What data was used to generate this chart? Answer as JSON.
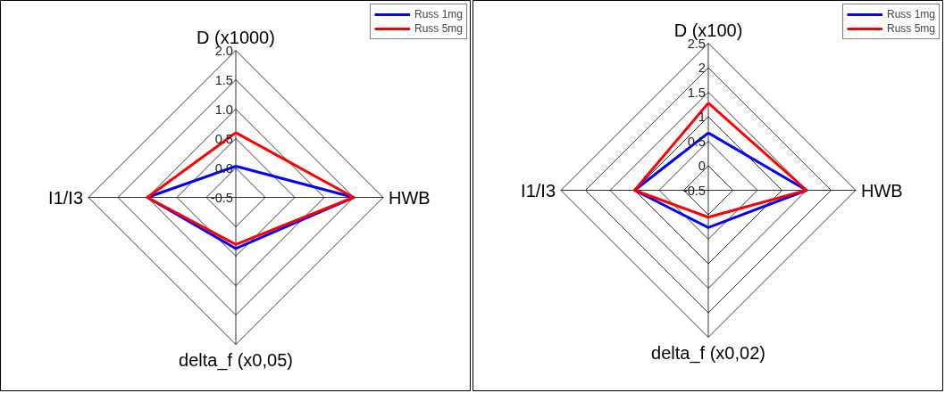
{
  "chart_data": [
    {
      "type": "radar",
      "categories": [
        "D (x1000)",
        "HWB",
        "delta_f (x0,05)",
        "I1/I3"
      ],
      "ylim": [
        -0.5,
        2.0
      ],
      "yticks": [
        -0.5,
        {
          "value": 0,
          "label": "0.0"
        },
        0.5,
        {
          "value": 1,
          "label": "1.0"
        },
        1.5,
        {
          "value": 2,
          "label": "2.0"
        }
      ],
      "grid": true,
      "legend": "top right",
      "marker": "none",
      "line_style": "solid",
      "series": [
        {
          "name": "Russ 1mg",
          "color": "#0000ff",
          "values": [
            0.03,
            1.5,
            0.37,
            1.0
          ]
        },
        {
          "name": "Russ 5mg",
          "color": "#ff0000",
          "values": [
            0.6,
            1.5,
            0.3,
            1.0
          ]
        }
      ]
    },
    {
      "type": "radar",
      "categories": [
        "D (x100)",
        "HWB",
        "delta_f (x0,02)",
        "I1/I3"
      ],
      "ylim": [
        -0.5,
        2.5
      ],
      "yticks": [
        -0.5,
        0,
        0.5,
        1,
        1.5,
        2,
        2.5
      ],
      "grid": true,
      "legend": "top right",
      "marker": "none",
      "line_style": "solid",
      "series": [
        {
          "name": "Russ 1mg",
          "color": "#0000ff",
          "values": [
            0.67,
            1.5,
            0.26,
            1.0
          ]
        },
        {
          "name": "Russ 5mg",
          "color": "#ff0000",
          "values": [
            1.28,
            1.5,
            0.05,
            1.0
          ]
        }
      ]
    }
  ]
}
